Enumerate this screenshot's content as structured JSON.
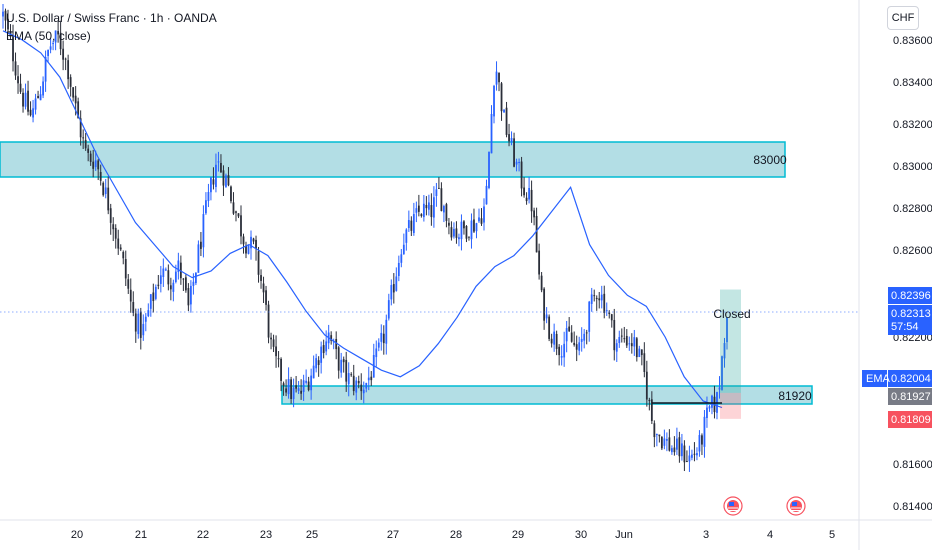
{
  "header": {
    "symbol_line": "U.S. Dollar / Swiss Franc · 1h · OANDA",
    "indicator_line": "EMA (50, close)",
    "currency_button": "CHF"
  },
  "price_axis": {
    "ticks": [
      "0.83600",
      "0.83400",
      "0.83200",
      "0.83000",
      "0.82800",
      "0.82600",
      "0.82200",
      "0.81600",
      "0.81400"
    ],
    "badges": {
      "high": "0.82396",
      "last": "0.82313",
      "countdown": "57:54",
      "ema_label": "EMA",
      "ema": "0.82004",
      "entry": "0.81927",
      "stop": "0.81809"
    }
  },
  "time_axis": [
    "20",
    "21",
    "22",
    "23",
    "25",
    "27",
    "28",
    "29",
    "30",
    "Jun",
    "3",
    "4",
    "5"
  ],
  "annotations": {
    "upper_zone_label": "83000",
    "lower_zone_label": "81920",
    "trade_label": "Closed"
  },
  "colors": {
    "bull": "#2962ff",
    "bear": "#2a2e39",
    "ema": "#2962ff",
    "zone_fill": "#a6d8e0",
    "zone_border": "#00bcd4",
    "badge_blue": "#2962ff",
    "badge_gray": "#787b86",
    "badge_red": "#f7525f"
  },
  "chart_data": {
    "type": "candlestick",
    "title": "U.S. Dollar / Swiss Franc · 1h · OANDA",
    "ylim": [
      0.8135,
      0.8371
    ],
    "x_ticks": [
      "20",
      "21",
      "22",
      "23",
      "25",
      "27",
      "28",
      "29",
      "30",
      "Jun",
      "3",
      "4",
      "5"
    ],
    "series": [
      {
        "name": "USDCHF",
        "type": "candlestick",
        "path": [
          0.8364,
          0.8348,
          0.8328,
          0.8318,
          0.833,
          0.835,
          0.8354,
          0.834,
          0.8318,
          0.83,
          0.8298,
          0.8284,
          0.8268,
          0.825,
          0.8228,
          0.822,
          0.8234,
          0.8248,
          0.8244,
          0.825,
          0.823,
          0.8255,
          0.8278,
          0.8298,
          0.829,
          0.8276,
          0.8262,
          0.8258,
          0.824,
          0.821,
          0.82,
          0.8193,
          0.8192,
          0.82,
          0.821,
          0.822,
          0.8208,
          0.82,
          0.8196,
          0.8196,
          0.8205,
          0.8218,
          0.824,
          0.8262,
          0.8268,
          0.8276,
          0.8274,
          0.8284,
          0.827,
          0.8265,
          0.8268,
          0.827,
          0.8278,
          0.8344,
          0.8316,
          0.83,
          0.8287,
          0.8278,
          0.8235,
          0.822,
          0.8214,
          0.8218,
          0.821,
          0.8227,
          0.824,
          0.8232,
          0.8215,
          0.8218,
          0.8215,
          0.8203,
          0.8178,
          0.8172,
          0.8168,
          0.8166,
          0.8163,
          0.8168,
          0.8184,
          0.819,
          0.8231
        ],
        "ema": [
          0.8357,
          0.8353,
          0.8347,
          0.8336,
          0.8318,
          0.83,
          0.8285,
          0.827,
          0.826,
          0.825,
          0.8245,
          0.8248,
          0.8256,
          0.826,
          0.8255,
          0.8243,
          0.823,
          0.8219,
          0.8213,
          0.8208,
          0.8203,
          0.82,
          0.8205,
          0.8215,
          0.8227,
          0.8241,
          0.825,
          0.8255,
          0.8264,
          0.8275,
          0.8286,
          0.826,
          0.8246,
          0.8237,
          0.8232,
          0.8218,
          0.82,
          0.8189,
          0.8186
        ]
      }
    ],
    "horizontal_zones": [
      {
        "label": "83000",
        "low": 0.8296,
        "high": 0.83
      },
      {
        "label": "81920",
        "low": 0.8192,
        "high": 0.81945
      }
    ],
    "position": {
      "label": "Closed",
      "entry": 0.81927,
      "target": 0.82396,
      "stop": 0.81809
    },
    "last_price": 0.82313,
    "ema": {
      "period": 50,
      "value": 0.82004
    },
    "grid": false
  }
}
